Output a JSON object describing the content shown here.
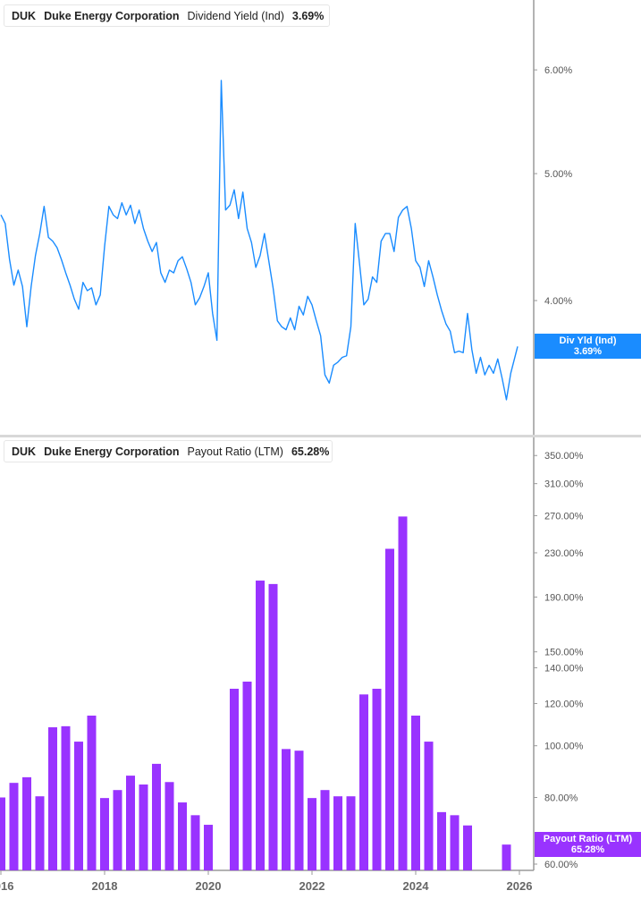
{
  "top_legend": {
    "ticker": "DUK",
    "company": "Duke Energy Corporation",
    "metric": "Dividend Yield (Ind)",
    "value": "3.69%"
  },
  "bottom_legend": {
    "ticker": "DUK",
    "company": "Duke Energy Corporation",
    "metric": "Payout Ratio (LTM)",
    "value": "65.28%"
  },
  "top_value_label": {
    "name": "Div Yld (Ind)",
    "value": "3.69%"
  },
  "bottom_value_label": {
    "name": "Payout Ratio (LTM)",
    "value": "65.28%"
  },
  "colors": {
    "yield_line": "#1a8cff",
    "payout_bars": "#9933ff",
    "axis": "#9a9a9a"
  },
  "chart_data": [
    {
      "type": "line",
      "series_name": "Dividend Yield (Ind)",
      "y_scale": "log",
      "y_unit": "%",
      "y_ticks": [
        "4.00%",
        "5.00%",
        "6.00%"
      ],
      "y_tick_values": [
        4,
        5,
        6
      ],
      "x_start": "2016-01",
      "x_frequency": "monthly",
      "values": [
        4.65,
        4.58,
        4.3,
        4.11,
        4.22,
        4.1,
        3.82,
        4.1,
        4.33,
        4.5,
        4.72,
        4.47,
        4.44,
        4.39,
        4.3,
        4.2,
        4.11,
        4.01,
        3.94,
        4.13,
        4.07,
        4.09,
        3.97,
        4.04,
        4.4,
        4.72,
        4.65,
        4.62,
        4.75,
        4.65,
        4.73,
        4.58,
        4.69,
        4.54,
        4.44,
        4.36,
        4.43,
        4.2,
        4.13,
        4.22,
        4.2,
        4.29,
        4.32,
        4.23,
        4.13,
        3.97,
        4.02,
        4.1,
        4.2,
        3.91,
        3.73,
        5.89,
        4.69,
        4.73,
        4.86,
        4.62,
        4.84,
        4.54,
        4.43,
        4.24,
        4.33,
        4.5,
        4.29,
        4.09,
        3.86,
        3.82,
        3.8,
        3.88,
        3.8,
        3.96,
        3.9,
        4.03,
        3.97,
        3.86,
        3.76,
        3.51,
        3.46,
        3.57,
        3.59,
        3.62,
        3.63,
        3.82,
        4.58,
        4.27,
        3.97,
        4.01,
        4.17,
        4.13,
        4.44,
        4.5,
        4.5,
        4.36,
        4.63,
        4.69,
        4.72,
        4.54,
        4.29,
        4.24,
        4.1,
        4.29,
        4.17,
        4.04,
        3.93,
        3.84,
        3.79,
        3.65,
        3.66,
        3.65,
        3.91,
        3.67,
        3.52,
        3.62,
        3.51,
        3.57,
        3.52,
        3.61,
        3.49,
        3.36,
        3.52,
        3.69
      ],
      "grid": false
    },
    {
      "type": "bar",
      "series_name": "Payout Ratio (LTM)",
      "y_scale": "log",
      "y_unit": "%",
      "y_ticks": [
        "60.00%",
        "80.00%",
        "100.00%",
        "120.00%",
        "140.00%",
        "150.00%",
        "190.00%",
        "230.00%",
        "270.00%",
        "310.00%",
        "350.00%"
      ],
      "y_tick_values": [
        60,
        80,
        100,
        120,
        140,
        150,
        190,
        230,
        270,
        310,
        350
      ],
      "x_ticks": [
        "2016",
        "2018",
        "2020",
        "2022",
        "2024",
        "2026"
      ],
      "categories": [
        "2015 Q4",
        "2016 Q1",
        "2016 Q2",
        "2016 Q3",
        "2016 Q4",
        "2017 Q1",
        "2017 Q2",
        "2017 Q3",
        "2017 Q4",
        "2018 Q1",
        "2018 Q2",
        "2018 Q3",
        "2018 Q4",
        "2019 Q1",
        "2019 Q2",
        "2019 Q3",
        "2019 Q4",
        "2020 Q1",
        "2020 Q2",
        "2020 Q3",
        "2020 Q4",
        "2021 Q1",
        "2021 Q2",
        "2021 Q3",
        "2021 Q4",
        "2022 Q1",
        "2022 Q2",
        "2022 Q3",
        "2022 Q4",
        "2023 Q1",
        "2023 Q2",
        "2023 Q3",
        "2023 Q4",
        "2024 Q1",
        "2024 Q2",
        "2024 Q3",
        "2024 Q4",
        "2025 Q1",
        "2025 Q2",
        "2025 Q3"
      ],
      "values": [
        80.0,
        85.2,
        87.3,
        80.4,
        108.3,
        108.8,
        101.8,
        113.9,
        79.8,
        82.6,
        87.9,
        84.6,
        92.5,
        85.5,
        78.3,
        74.1,
        71.1,
        null,
        127.9,
        131.9,
        204,
        201,
        98.6,
        97.9,
        79.8,
        82.6,
        80.4,
        80.4,
        124.8,
        127.9,
        234,
        269,
        113.9,
        101.8,
        75.1,
        74.1,
        70.9,
        null,
        null,
        65.28
      ],
      "grid": false
    }
  ]
}
